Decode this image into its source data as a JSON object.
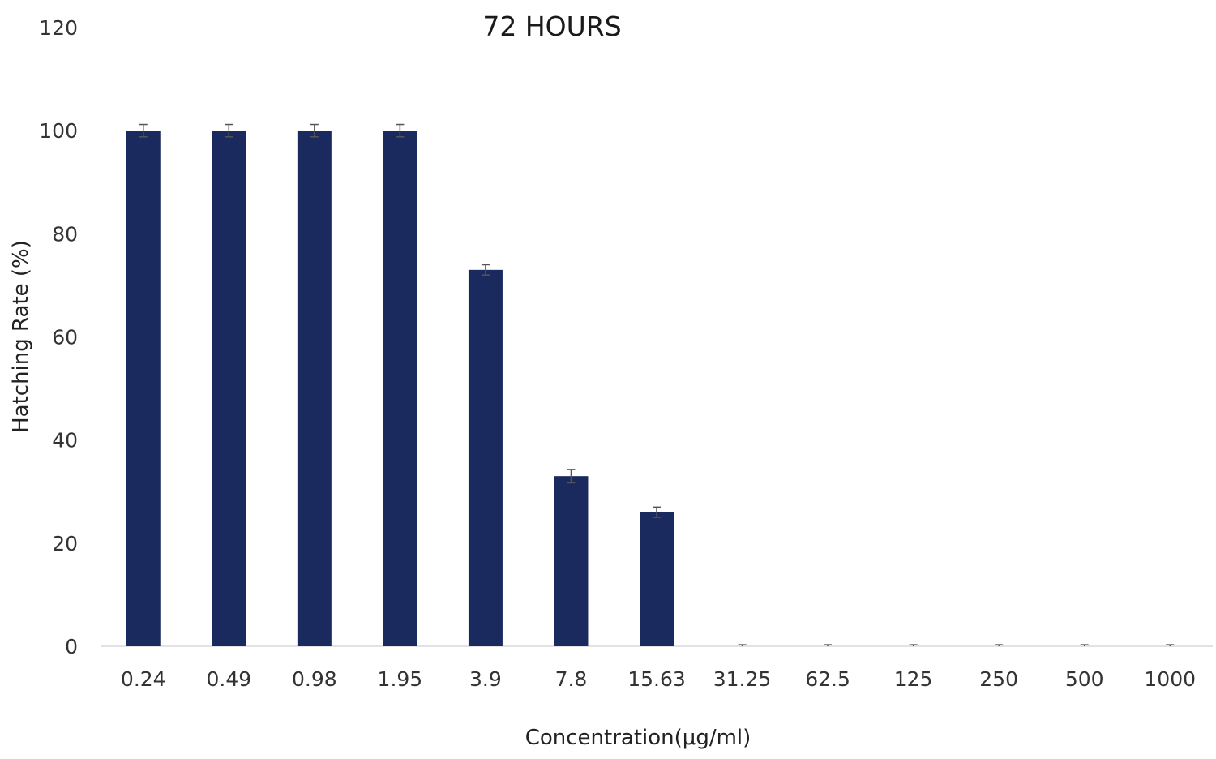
{
  "chart_data": {
    "type": "bar",
    "title": "72 HOURS",
    "xlabel": "Concentration(μg/ml)",
    "ylabel": "Hatching Rate (%)",
    "categories": [
      "0.24",
      "0.49",
      "0.98",
      "1.95",
      "3.9",
      "7.8",
      "15.63",
      "31.25",
      "62.5",
      "125",
      "250",
      "500",
      "1000"
    ],
    "values": [
      100,
      100,
      100,
      100,
      73,
      33,
      26,
      0,
      0,
      0,
      0,
      0,
      0
    ],
    "errors": [
      1.2,
      1.2,
      1.2,
      1.2,
      1.0,
      1.3,
      1.0,
      0.3,
      0.3,
      0.3,
      0.3,
      0.3,
      0.3
    ],
    "ylim": [
      0,
      120
    ],
    "yticks": [
      "0",
      "20",
      "40",
      "60",
      "80",
      "100",
      "120"
    ],
    "grid": false,
    "legend": false,
    "bar_color": "#1b2a5e",
    "error_bar_color": "#555555"
  }
}
